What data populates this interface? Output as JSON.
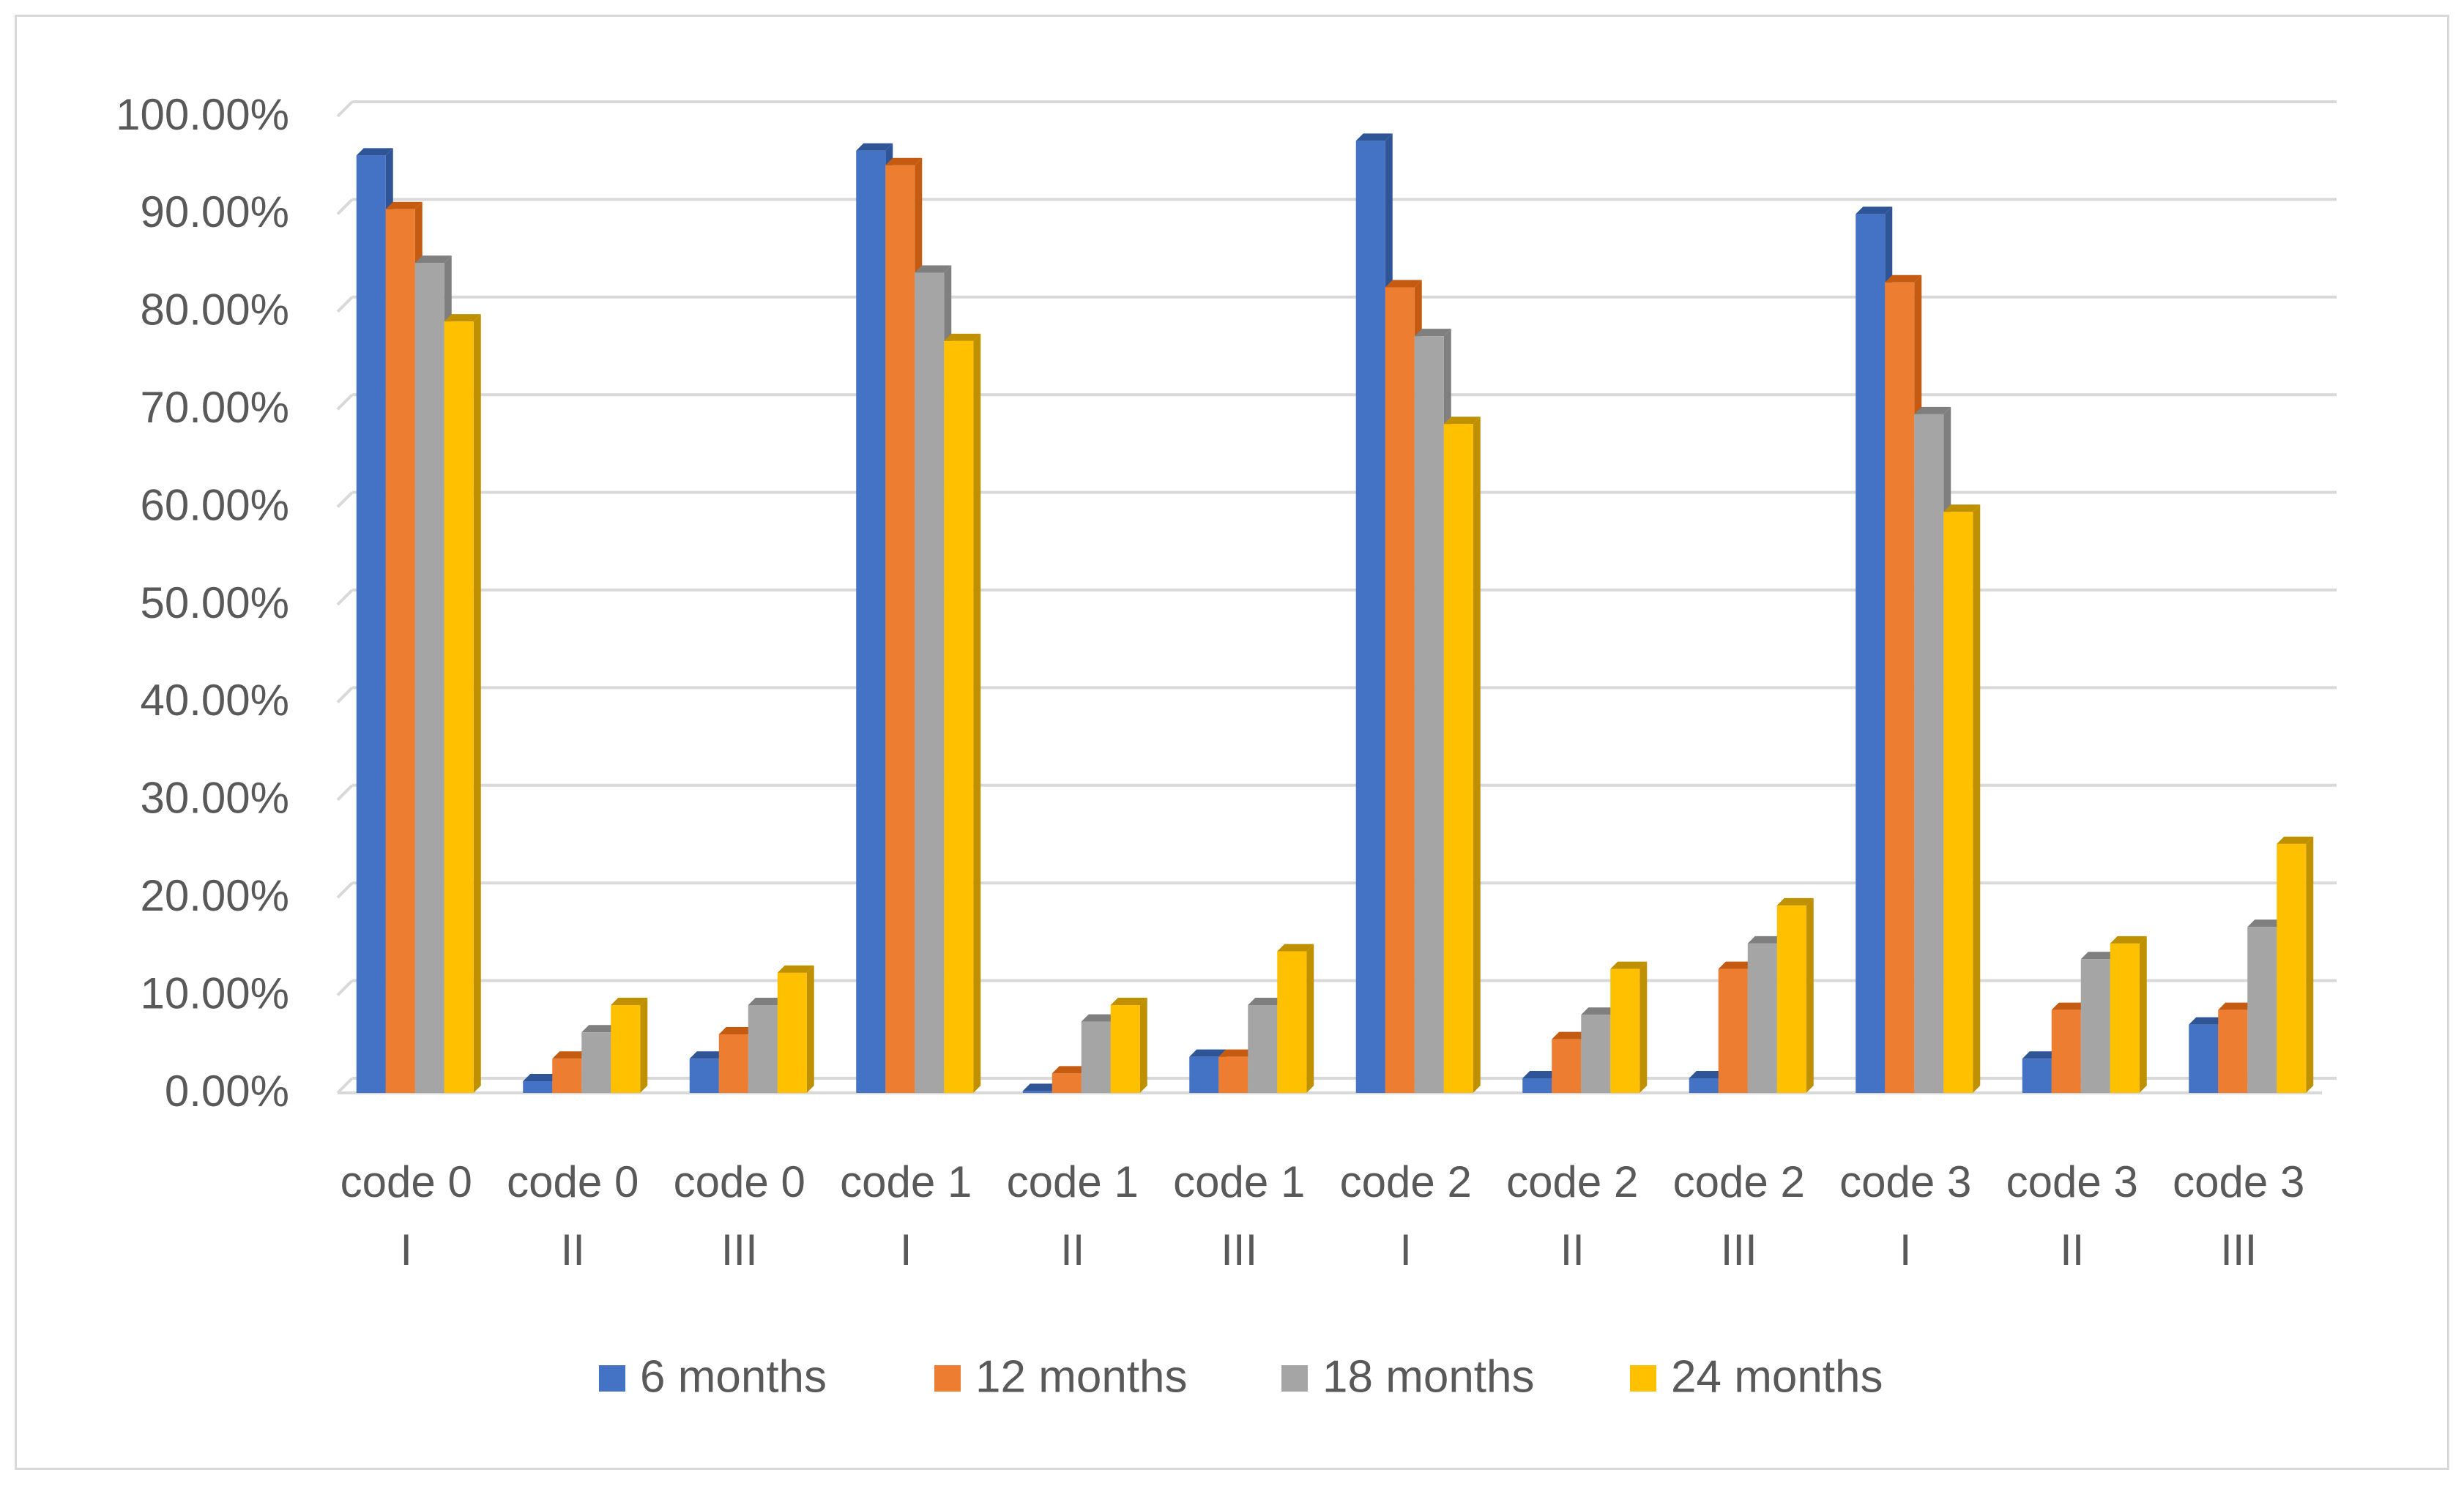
{
  "chart_data": {
    "type": "bar",
    "style": "3d-clustered-column",
    "title": "",
    "xlabel": "",
    "ylabel": "",
    "ylim": [
      0,
      100
    ],
    "y_ticks": [
      "0.00%",
      "10.00%",
      "20.00%",
      "30.00%",
      "40.00%",
      "50.00%",
      "60.00%",
      "70.00%",
      "80.00%",
      "90.00%",
      "100.00%"
    ],
    "y_tick_values": [
      0,
      10,
      20,
      30,
      40,
      50,
      60,
      70,
      80,
      90,
      100
    ],
    "grid": true,
    "legend_position": "bottom",
    "categories": [
      [
        "code 0",
        "I"
      ],
      [
        "code 0",
        "II"
      ],
      [
        "code 0",
        "III"
      ],
      [
        "code 1",
        "I"
      ],
      [
        "code 1",
        "II"
      ],
      [
        "code 1",
        "III"
      ],
      [
        "code 2",
        "I"
      ],
      [
        "code 2",
        "II"
      ],
      [
        "code 2",
        "III"
      ],
      [
        "code 3",
        "I"
      ],
      [
        "code 3",
        "II"
      ],
      [
        "code 3",
        "III"
      ]
    ],
    "series": [
      {
        "name": "6 months",
        "color": "#4472c4",
        "side_color": "#2f5597",
        "values": [
          96,
          1.2,
          3.5,
          96.5,
          0.2,
          3.7,
          97.5,
          1.5,
          1.5,
          90,
          3.5,
          7
        ]
      },
      {
        "name": "12 months",
        "color": "#ed7d31",
        "side_color": "#c55a11",
        "values": [
          90.5,
          3.5,
          6,
          95,
          2,
          3.7,
          82.5,
          5.5,
          12.7,
          83,
          8.5,
          8.5
        ]
      },
      {
        "name": "18 months",
        "color": "#a5a5a5",
        "side_color": "#7f7f7f",
        "values": [
          85,
          6.2,
          9,
          84,
          7.3,
          9,
          77.5,
          8,
          15.3,
          69.5,
          13.7,
          17
        ]
      },
      {
        "name": "24 months",
        "color": "#ffc000",
        "side_color": "#bf9000",
        "values": [
          79,
          9,
          12.3,
          77,
          9,
          14.5,
          68.5,
          12.7,
          19.2,
          59.5,
          15.3,
          25.5
        ]
      }
    ]
  }
}
